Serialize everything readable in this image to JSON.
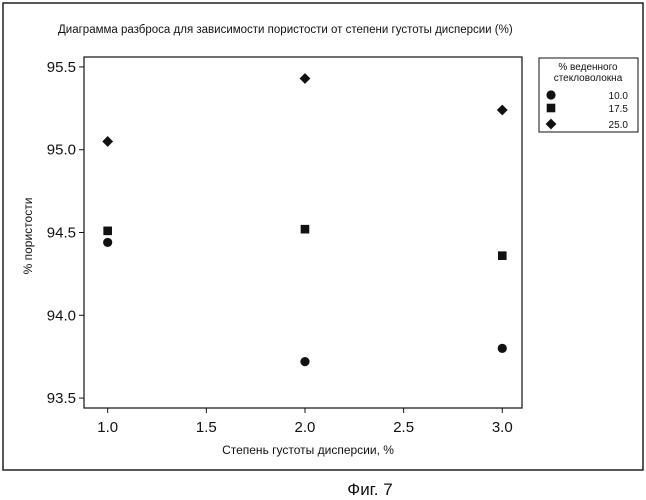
{
  "figure": {
    "caption": "Фиг. 7"
  },
  "chart_data": {
    "type": "scatter",
    "title": "Диаграмма разброса для зависимости пористости от степени густоты дисперсии (%)",
    "xlabel": "Степень густоты дисперсии, %",
    "ylabel": "% пористости",
    "xlim": [
      0.88,
      3.1
    ],
    "ylim": [
      93.44,
      95.56
    ],
    "x_ticks": [
      1.0,
      1.5,
      2.0,
      2.5,
      3.0
    ],
    "x_tick_labels": [
      "1.0",
      "1.5",
      "2.0",
      "2.5",
      "3.0"
    ],
    "y_ticks": [
      93.5,
      94.0,
      94.5,
      95.0,
      95.5
    ],
    "y_tick_labels": [
      "93.5",
      "94.0",
      "94.5",
      "95.0",
      "95.5"
    ],
    "grid": false,
    "legend_placement": "top-right outside",
    "legend_title": [
      "% веденного",
      "стекловолокна"
    ],
    "x": [
      1.0,
      2.0,
      3.0
    ],
    "series": [
      {
        "name": "10.0",
        "marker": "circle",
        "values": [
          94.44,
          93.72,
          93.8
        ]
      },
      {
        "name": "17.5",
        "marker": "square",
        "values": [
          94.51,
          94.52,
          94.36
        ]
      },
      {
        "name": "25.0",
        "marker": "diamond",
        "values": [
          95.05,
          95.43,
          95.24
        ]
      }
    ],
    "marker_color": "#111111"
  }
}
